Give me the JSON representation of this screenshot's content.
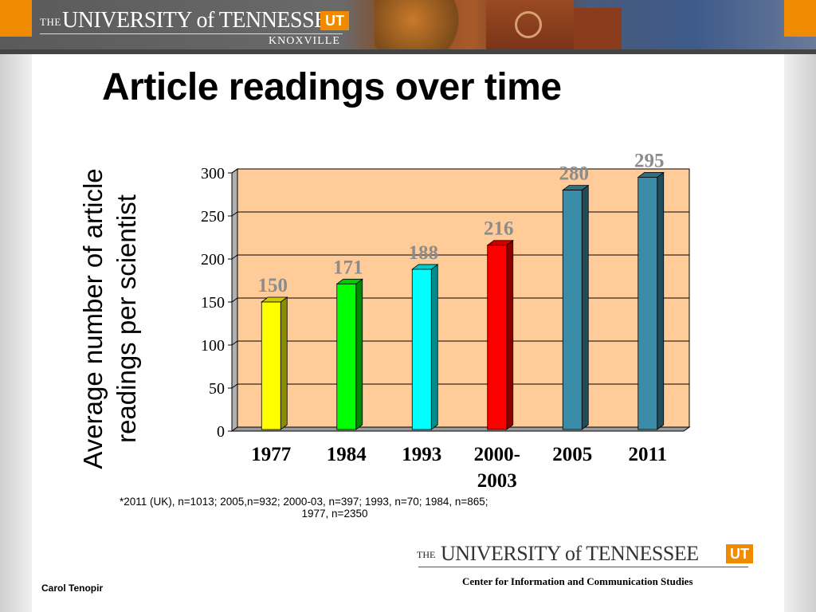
{
  "header": {
    "the": "THE",
    "university": "UNIVERSITY of TENNESSEE",
    "badge": "UT",
    "campus": "KNOXVILLE"
  },
  "slide": {
    "title": "Article readings over time",
    "footnote_line1": "*2011 (UK), n=1013; 2005,n=932; 2000-03, n=397; 1993, n=70; 1984, n=865;",
    "footnote_line2": "1977, n=2350",
    "center_name": "Center for Information and Communication Studies",
    "author": "Carol Tenopir"
  },
  "footer_logo": {
    "the": "THE",
    "university": "UNIVERSITY of TENNESSEE",
    "badge": "UT"
  },
  "chart_data": {
    "type": "bar",
    "title": "",
    "ylabel_lines": [
      "Average number of article",
      "readings per scientist"
    ],
    "xlabel": "",
    "categories": [
      "1977",
      "1984",
      "1993",
      "2000-2003",
      "2005",
      "2011"
    ],
    "category_lines": [
      [
        "1977"
      ],
      [
        "1984"
      ],
      [
        "1993"
      ],
      [
        "2000-",
        "2003"
      ],
      [
        "2005"
      ],
      [
        "2011"
      ]
    ],
    "values": [
      150,
      171,
      188,
      216,
      280,
      295
    ],
    "bar_colors": [
      "#ffff00",
      "#00ff00",
      "#00ffff",
      "#ff0000",
      "#3a8ca8",
      "#3a8ca8"
    ],
    "plot_background": "#ffcc99",
    "label_color": "#8c8c8c",
    "ylim": [
      0,
      300
    ],
    "yticks": [
      0,
      50,
      100,
      150,
      200,
      250,
      300
    ],
    "grid": true,
    "legend": "none"
  }
}
